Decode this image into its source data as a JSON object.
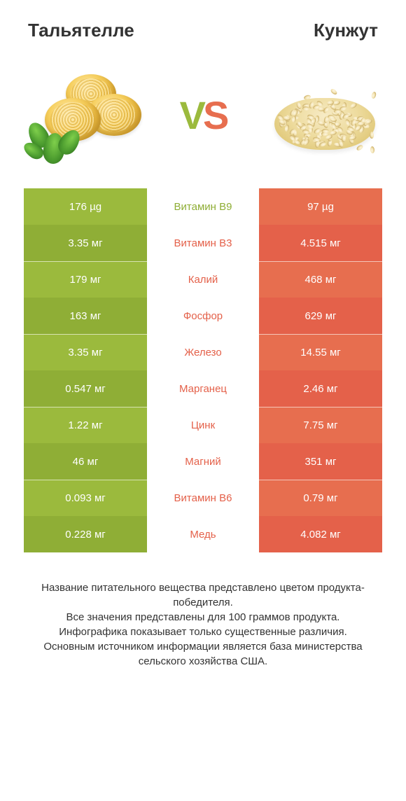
{
  "header": {
    "left_title": "Тальятелле",
    "right_title": "Кунжут"
  },
  "vs": {
    "v": "V",
    "s": "S"
  },
  "colors": {
    "green_a": "#9bba3d",
    "green_b": "#8fae36",
    "orange_a": "#e76e4f",
    "orange_b": "#e4614a",
    "mid_text_green": "#8fae36",
    "mid_text_orange": "#e4614a",
    "vs_v": "#9bba3d",
    "vs_s": "#e76e4f"
  },
  "rows": [
    {
      "left": "176 µg",
      "mid": "Витамин B9",
      "right": "97 µg",
      "winner": "left"
    },
    {
      "left": "3.35 мг",
      "mid": "Витамин B3",
      "right": "4.515 мг",
      "winner": "right"
    },
    {
      "left": "179 мг",
      "mid": "Калий",
      "right": "468 мг",
      "winner": "right"
    },
    {
      "left": "163 мг",
      "mid": "Фосфор",
      "right": "629 мг",
      "winner": "right"
    },
    {
      "left": "3.35 мг",
      "mid": "Железо",
      "right": "14.55 мг",
      "winner": "right"
    },
    {
      "left": "0.547 мг",
      "mid": "Марганец",
      "right": "2.46 мг",
      "winner": "right"
    },
    {
      "left": "1.22 мг",
      "mid": "Цинк",
      "right": "7.75 мг",
      "winner": "right"
    },
    {
      "left": "46 мг",
      "mid": "Магний",
      "right": "351 мг",
      "winner": "right"
    },
    {
      "left": "0.093 мг",
      "mid": "Витамин B6",
      "right": "0.79 мг",
      "winner": "right"
    },
    {
      "left": "0.228 мг",
      "mid": "Медь",
      "right": "4.082 мг",
      "winner": "right"
    }
  ],
  "footer": {
    "line1": "Название питательного вещества представлено цветом продукта-победителя.",
    "line2": "Все значения представлены для 100 граммов продукта.",
    "line3": "Инфографика показывает только существенные различия.",
    "line4": "Основным источником информации является база министерства сельского хозяйства США."
  }
}
